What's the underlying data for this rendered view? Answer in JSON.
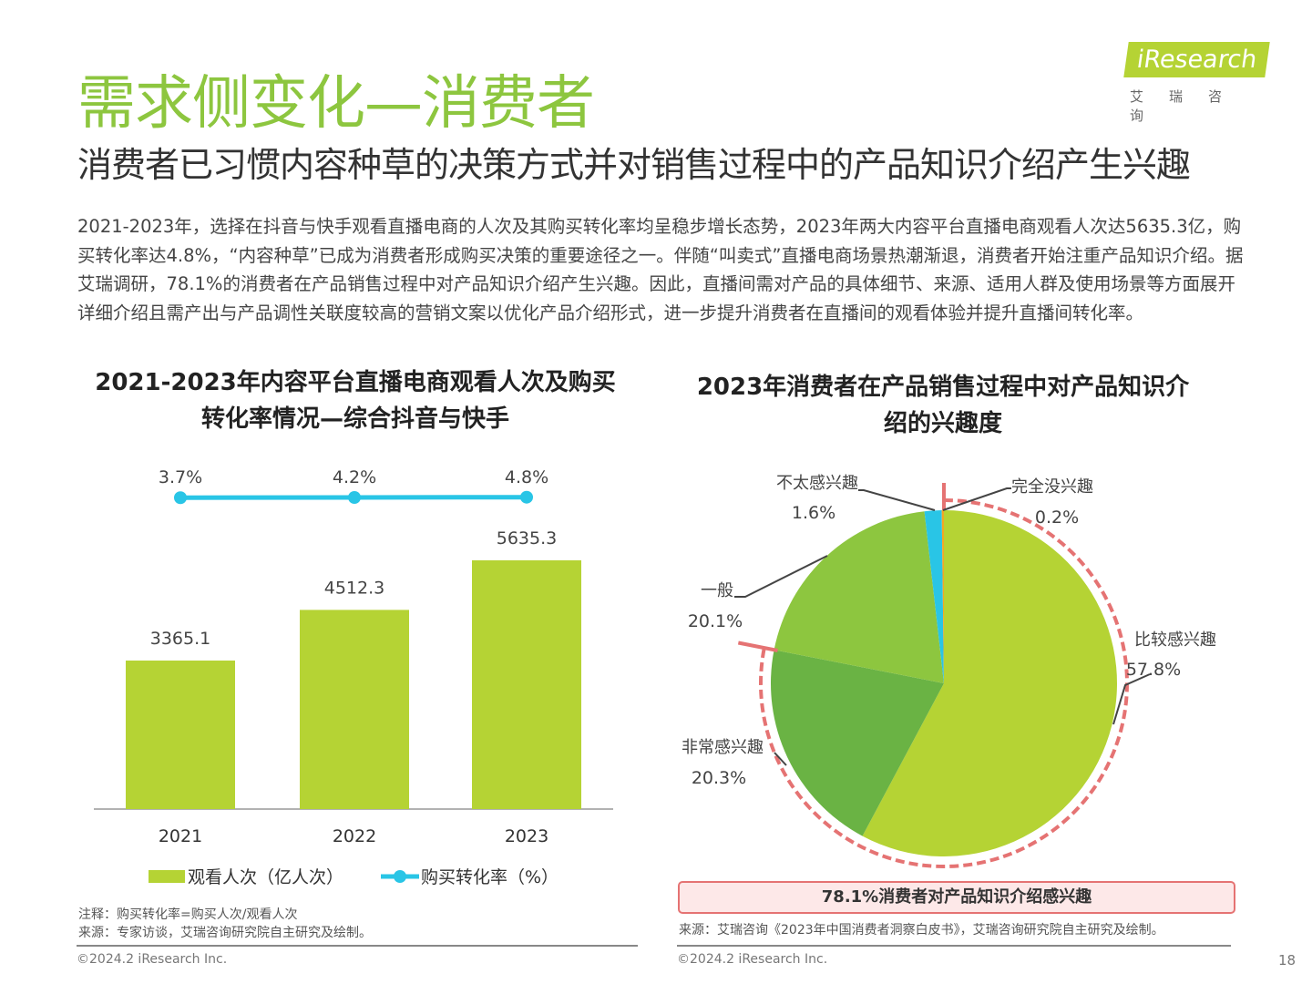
{
  "header": {
    "title": "需求侧变化—消费者",
    "subtitle": "消费者已习惯内容种草的决策方式并对销售过程中的产品知识介绍产生兴趣",
    "logo_text": "iResearch",
    "logo_cn": "艾瑞咨询"
  },
  "paragraph": "2021-2023年，选择在抖音与快手观看直播电商的人次及其购买转化率均呈稳步增长态势，2023年两大内容平台直播电商观看人次达5635.3亿，购买转化率达4.8%，“内容种草”已成为消费者形成购买决策的重要途径之一。伴随“叫卖式”直播电商场景热潮渐退，消费者开始注重产品知识介绍。据艾瑞调研，78.1%的消费者在产品销售过程中对产品知识介绍产生兴趣。因此，直播间需对产品的具体细节、来源、适用人群及使用场景等方面展开详细介绍且需产出与产品调性关联度较高的营销文案以优化产品介绍形式，进一步提升消费者在直播间的观看体验并提升直播间转化率。",
  "chart_data": [
    {
      "type": "bar",
      "title": "2021-2023年内容平台直播电商观看人次及购买转化率情况—综合抖音与快手",
      "categories": [
        "2021",
        "2022",
        "2023"
      ],
      "series": [
        {
          "name": "观看人次（亿人次）",
          "type": "bar",
          "values": [
            3365.1,
            4512.3,
            5635.3
          ],
          "labels": [
            "3365.1",
            "4512.3",
            "5635.3"
          ],
          "color": "#b5d334"
        },
        {
          "name": "购买转化率（%）",
          "type": "line",
          "values": [
            3.7,
            4.2,
            4.8
          ],
          "labels": [
            "3.7%",
            "4.2%",
            "4.8%"
          ],
          "color": "#29c5e6"
        }
      ]
    },
    {
      "type": "pie",
      "title": "2023年消费者在产品销售过程中对产品知识介绍的兴趣度",
      "slices": [
        {
          "label": "比较感兴趣",
          "value": 57.8,
          "text": "57.8%",
          "color": "#b5d334"
        },
        {
          "label": "非常感兴趣",
          "value": 20.3,
          "text": "20.3%",
          "color": "#6ab344"
        },
        {
          "label": "一般",
          "value": 20.1,
          "text": "20.1%",
          "color": "#8dc63f"
        },
        {
          "label": "不太感兴趣",
          "value": 1.6,
          "text": "1.6%",
          "color": "#29c5e6"
        },
        {
          "label": "完全没兴趣",
          "value": 0.2,
          "text": "0.2%",
          "color": "#f5a623"
        }
      ],
      "callout": "78.1%消费者对产品知识介绍感兴趣",
      "highlight_color": "#e57373"
    }
  ],
  "left_notes": {
    "note": "注释：购买转化率=购买人次/观看人次",
    "source": "来源：专家访谈，艾瑞咨询研究院自主研究及绘制。"
  },
  "right_notes": {
    "source": "来源：艾瑞咨询《2023年中国消费者洞察白皮书》，艾瑞咨询研究院自主研究及绘制。"
  },
  "footer": {
    "copyright_left": "©2024.2 iResearch Inc.",
    "copyright_right": "©2024.2 iResearch Inc.",
    "page": "18"
  }
}
